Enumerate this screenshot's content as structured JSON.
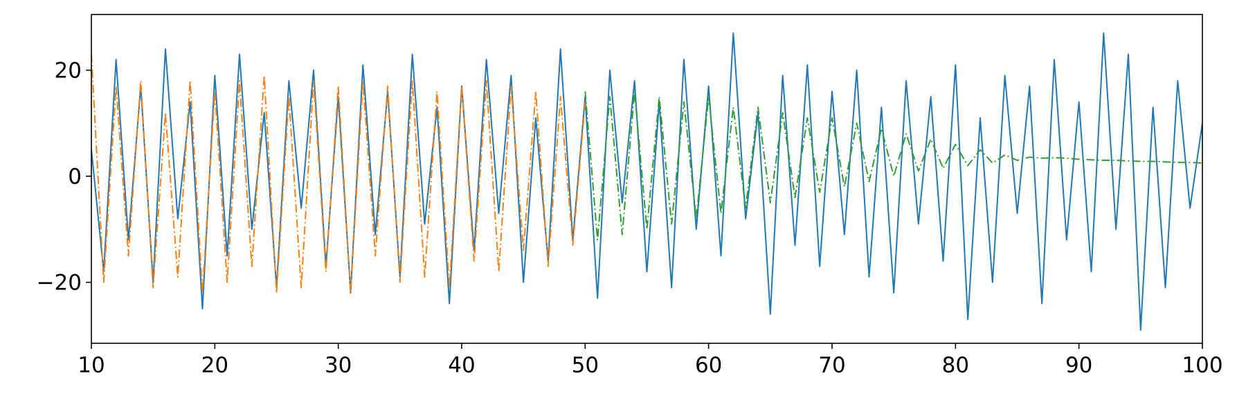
{
  "chart_data": {
    "type": "line",
    "x": [
      10,
      11,
      12,
      13,
      14,
      15,
      16,
      17,
      18,
      19,
      20,
      21,
      22,
      23,
      24,
      25,
      26,
      27,
      28,
      29,
      30,
      31,
      32,
      33,
      34,
      35,
      36,
      37,
      38,
      39,
      40,
      41,
      42,
      43,
      44,
      45,
      46,
      47,
      48,
      49,
      50,
      51,
      52,
      53,
      54,
      55,
      56,
      57,
      58,
      59,
      60,
      61,
      62,
      63,
      64,
      65,
      66,
      67,
      68,
      69,
      70,
      71,
      72,
      73,
      74,
      75,
      76,
      77,
      78,
      79,
      80,
      81,
      82,
      83,
      84,
      85,
      86,
      87,
      88,
      89,
      90,
      91,
      92,
      93,
      94,
      95,
      96,
      97,
      98,
      99,
      100
    ],
    "series": [
      {
        "color": "#1f77b4",
        "linestyle": "solid",
        "values": [
          5,
          -18,
          22,
          -12,
          17,
          -20,
          24,
          -8,
          14,
          -25,
          19,
          -15,
          23,
          -10,
          12,
          -21,
          18,
          -6,
          20,
          -17,
          15,
          -22,
          21,
          -11,
          16,
          -19,
          23,
          -9,
          13,
          -24,
          17,
          -14,
          22,
          -7,
          19,
          -20,
          11,
          -16,
          24,
          -12,
          15,
          -23,
          20,
          -5,
          18,
          -18,
          14,
          -21,
          22,
          -10,
          17,
          -15,
          27,
          -8,
          12,
          -26,
          19,
          -13,
          21,
          -17,
          16,
          -11,
          20,
          -19,
          13,
          -22,
          18,
          -9,
          15,
          -16,
          21,
          -27,
          11,
          -20,
          19,
          -7,
          17,
          -24,
          22,
          -12,
          14,
          -18,
          27,
          -10,
          23,
          -29,
          13,
          -21,
          18,
          -6,
          10
        ]
      },
      {
        "color": "#ff7f0e",
        "linestyle": "dashdot",
        "values": [
          23,
          -20,
          17,
          -15,
          18,
          -21,
          12,
          -19,
          18,
          -22,
          16,
          -20,
          18,
          -17,
          19,
          -22,
          15,
          -21,
          18,
          -18,
          17,
          -22,
          18,
          -15,
          17,
          -20,
          18,
          -19,
          16,
          -21,
          17,
          -16,
          18,
          -18,
          17,
          -14,
          16,
          -17,
          15,
          -13,
          14,
          null,
          null,
          null,
          null,
          null,
          null,
          null,
          null,
          null,
          null,
          null,
          null,
          null,
          null,
          null,
          null,
          null,
          null,
          null,
          null,
          null,
          null,
          null,
          null,
          null,
          null,
          null,
          null,
          null,
          null,
          null,
          null,
          null,
          null,
          null,
          null,
          null,
          null,
          null,
          null,
          null,
          null,
          null,
          null,
          null,
          null,
          null,
          null,
          null,
          null
        ]
      },
      {
        "color": "#2ca02c",
        "linestyle": "dashdot",
        "values": [
          null,
          null,
          null,
          null,
          null,
          null,
          null,
          null,
          null,
          null,
          null,
          null,
          null,
          null,
          null,
          null,
          null,
          null,
          null,
          null,
          null,
          null,
          null,
          null,
          null,
          null,
          null,
          null,
          null,
          null,
          null,
          null,
          null,
          null,
          null,
          null,
          null,
          null,
          null,
          null,
          16,
          -12,
          15,
          -11,
          16,
          -10,
          15,
          -9,
          14,
          -8,
          15,
          -7,
          13,
          -6,
          13,
          -5,
          12,
          -4,
          11,
          -3,
          11,
          -2,
          10,
          -1,
          9,
          0,
          8,
          1,
          7,
          1.5,
          6,
          2,
          5,
          2.5,
          4,
          3,
          3.6,
          3.4,
          3.5,
          3.4,
          3.2,
          3.1,
          3,
          3,
          2.9,
          2.8,
          2.8,
          2.7,
          2.6,
          2.6,
          2.5
        ]
      }
    ],
    "xlim": [
      10,
      100
    ],
    "xticks": [
      10,
      20,
      30,
      40,
      50,
      60,
      70,
      80,
      90,
      100
    ],
    "ylim": [
      -31.5,
      30.5
    ],
    "yticks": [
      {
        "value": -20,
        "label": "−20"
      },
      0,
      20
    ]
  }
}
